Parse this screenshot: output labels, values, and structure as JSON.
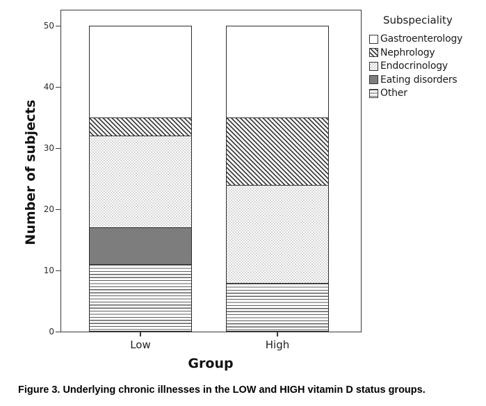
{
  "figure": {
    "caption": "Figure 3. Underlying chronic illnesses in the LOW and HIGH vitamin D status groups."
  },
  "chart_data": {
    "type": "bar",
    "stacked": true,
    "title": "",
    "xlabel": "Group",
    "ylabel": "Number of subjects",
    "ylim": [
      0,
      50
    ],
    "yticks": [
      0,
      10,
      20,
      30,
      40,
      50
    ],
    "categories": [
      "Low",
      "High"
    ],
    "series": [
      {
        "name": "Other",
        "values": [
          11,
          8
        ],
        "pattern": "hlines"
      },
      {
        "name": "Eating disorders",
        "values": [
          6,
          0
        ],
        "pattern": "solid"
      },
      {
        "name": "Endocrinology",
        "values": [
          15,
          16
        ],
        "pattern": "checker"
      },
      {
        "name": "Nephrology",
        "values": [
          3,
          11
        ],
        "pattern": "diag"
      },
      {
        "name": "Gastroenterology",
        "values": [
          15,
          15
        ],
        "pattern": "plain"
      }
    ],
    "colors": {
      "solid_fill": "#7d7d7d",
      "pattern_line": "#3f3f3f",
      "frame": "#3a3a3a"
    },
    "legend": {
      "title": "Subspeciality",
      "position": "top-right",
      "order_top_to_bottom": [
        "Gastroenterology",
        "Nephrology",
        "Endocrinology",
        "Eating disorders",
        "Other"
      ]
    }
  }
}
